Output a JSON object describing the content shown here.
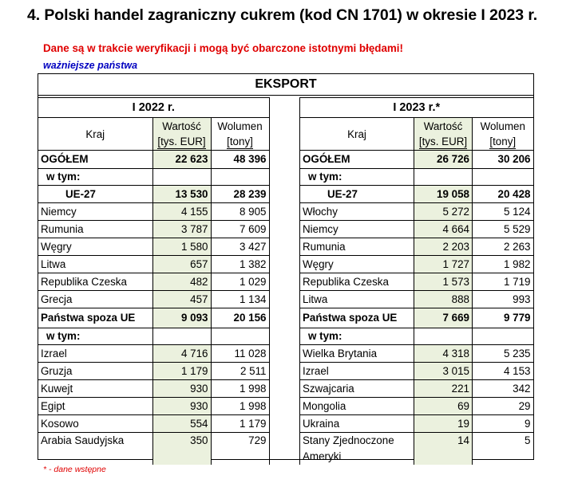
{
  "heading": "4.  Polski handel zagraniczny cukrem (kod CN 1701) w okresie I 2023 r.",
  "warning": "Dane są w trakcie weryfikacji i mogą być obarczone istotnymi błędami!",
  "subtitle": "ważniejsze państwa",
  "table_title": "EKSPORT",
  "columns": {
    "country": "Kraj",
    "value_top": "Wartość",
    "value_unit": "[tys. EUR]",
    "volume_top": "Wolumen",
    "volume_unit": "[tony]"
  },
  "left": {
    "period": "I 2022 r.",
    "total": {
      "label": "OGÓŁEM",
      "value": "22 623",
      "volume": "48 396"
    },
    "wtym1": "w tym:",
    "eu": {
      "label": "UE-27",
      "value": "13 530",
      "volume": "28 239"
    },
    "eu_rows": [
      {
        "country": "Niemcy",
        "value": "4 155",
        "volume": "8 905"
      },
      {
        "country": "Rumunia",
        "value": "3 787",
        "volume": "7 609"
      },
      {
        "country": "Węgry",
        "value": "1 580",
        "volume": "3 427"
      },
      {
        "country": "Litwa",
        "value": "657",
        "volume": "1 382"
      },
      {
        "country": "Republika Czeska",
        "value": "482",
        "volume": "1 029"
      },
      {
        "country": "Grecja",
        "value": "457",
        "volume": "1 134"
      }
    ],
    "non_eu": {
      "label": "Państwa spoza UE",
      "value": "9 093",
      "volume": "20 156"
    },
    "wtym2": "w tym:",
    "non_eu_rows": [
      {
        "country": "Izrael",
        "value": "4 716",
        "volume": "11 028"
      },
      {
        "country": "Gruzja",
        "value": "1 179",
        "volume": "2 511"
      },
      {
        "country": "Kuwejt",
        "value": "930",
        "volume": "1 998"
      },
      {
        "country": "Egipt",
        "value": "930",
        "volume": "1 998"
      },
      {
        "country": "Kosowo",
        "value": "554",
        "volume": "1 179"
      },
      {
        "country": "Arabia Saudyjska",
        "value": "350",
        "volume": "729"
      }
    ]
  },
  "right": {
    "period": "I 2023 r.*",
    "total": {
      "label": "OGÓŁEM",
      "value": "26 726",
      "volume": "30 206"
    },
    "wtym1": "w tym:",
    "eu": {
      "label": "UE-27",
      "value": "19 058",
      "volume": "20 428"
    },
    "eu_rows": [
      {
        "country": "Włochy",
        "value": "5 272",
        "volume": "5 124"
      },
      {
        "country": "Niemcy",
        "value": "4 664",
        "volume": "5 529"
      },
      {
        "country": "Rumunia",
        "value": "2 203",
        "volume": "2 263"
      },
      {
        "country": "Węgry",
        "value": "1 727",
        "volume": "1 982"
      },
      {
        "country": "Republika Czeska",
        "value": "1 573",
        "volume": "1 719"
      },
      {
        "country": "Litwa",
        "value": "888",
        "volume": "993"
      }
    ],
    "non_eu": {
      "label": "Państwa spoza UE",
      "value": "7 669",
      "volume": "9 779"
    },
    "wtym2": "w tym:",
    "non_eu_rows": [
      {
        "country": "Wielka Brytania",
        "value": "4 318",
        "volume": "5 235"
      },
      {
        "country": "Izrael",
        "value": "3 015",
        "volume": "4 153"
      },
      {
        "country": "Szwajcaria",
        "value": "221",
        "volume": "342"
      },
      {
        "country": "Mongolia",
        "value": "69",
        "volume": "29"
      },
      {
        "country": "Ukraina",
        "value": "19",
        "volume": "9"
      },
      {
        "country": "Stany Zjednoczone Ameryki",
        "value": "14",
        "volume": "5"
      }
    ]
  },
  "footnote": "* - dane wstępne"
}
